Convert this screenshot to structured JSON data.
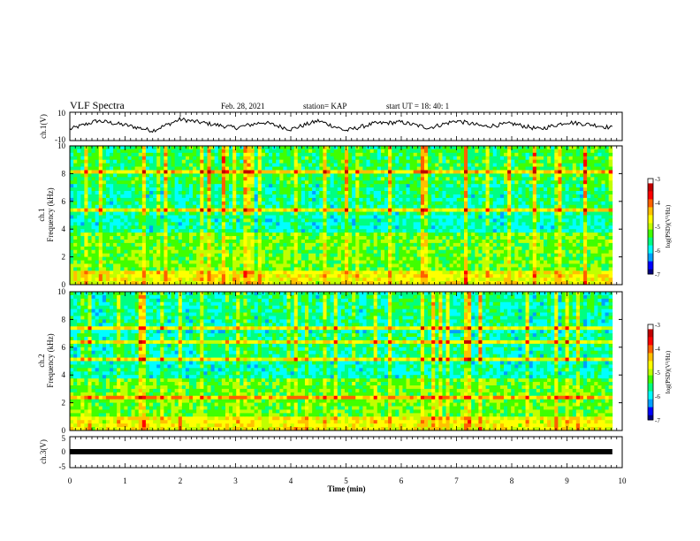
{
  "header": {
    "title": "VLF Spectra",
    "date": "Feb. 28, 2021",
    "station": "station= KAP",
    "start": "start  UT =   18: 40: 1"
  },
  "colors": {
    "spectrogram_scale": [
      "#000080",
      "#0000ff",
      "#00a0ff",
      "#00ffff",
      "#00ff80",
      "#40ff00",
      "#c0ff00",
      "#ffff00",
      "#ffc000",
      "#ff6000",
      "#ff0000",
      "#c00000",
      "#ffffff"
    ],
    "trace": "#000000",
    "frame": "#000000"
  },
  "chart_data": [
    {
      "type": "line",
      "panel": "ch1-waveform",
      "ylabel": "ch.1(V)",
      "ylim": [
        -10,
        10
      ],
      "yticks": [
        "10",
        "-10"
      ],
      "xlim": [
        0,
        9.82
      ],
      "x": [
        0,
        0.5,
        1,
        1.5,
        2,
        2.5,
        3,
        3.5,
        4,
        4.5,
        5,
        5.5,
        6,
        6.5,
        7,
        7.5,
        8,
        8.5,
        9,
        9.5,
        9.82
      ],
      "y": [
        -2,
        4,
        1,
        -3,
        5,
        2,
        -1,
        3,
        -2,
        4,
        -3,
        2,
        3,
        -1,
        4,
        0,
        2,
        -2,
        3,
        1,
        -1
      ]
    },
    {
      "type": "heatmap",
      "panel": "ch1-spectrogram",
      "ylabel": "ch.1\nFrequency (kHz)",
      "ylim": [
        0,
        10
      ],
      "yticks": [
        "0",
        "2",
        "4",
        "6",
        "8",
        "10"
      ],
      "xlim": [
        0,
        9.82
      ],
      "colorbar": {
        "label": "log(PSD)(V²/Hz)",
        "range": [
          -7,
          -3
        ],
        "ticks": [
          "-3",
          "-4",
          "-5",
          "-6",
          "-7"
        ]
      }
    },
    {
      "type": "heatmap",
      "panel": "ch2-spectrogram",
      "ylabel": "ch.2\nFrequency (kHz)",
      "ylim": [
        0,
        10
      ],
      "yticks": [
        "0",
        "2",
        "4",
        "6",
        "8",
        "10"
      ],
      "xlim": [
        0,
        9.82
      ],
      "colorbar": {
        "label": "log(PSD)(V²/Hz)",
        "range": [
          -7,
          -3
        ],
        "ticks": [
          "-3",
          "-4",
          "-5",
          "-6",
          "-7"
        ]
      }
    },
    {
      "type": "line",
      "panel": "ch3-waveform",
      "ylabel": "ch.3(V)",
      "ylim": [
        -5,
        5
      ],
      "yticks": [
        "5",
        "0",
        "-5"
      ],
      "xlim": [
        0,
        9.82
      ],
      "x": [
        0,
        9.82
      ],
      "y": [
        0,
        0
      ]
    }
  ],
  "xaxis": {
    "label": "Time (min)",
    "range": [
      0,
      10
    ],
    "ticks": [
      "0",
      "1",
      "2",
      "3",
      "4",
      "5",
      "6",
      "7",
      "8",
      "9",
      "10"
    ]
  }
}
